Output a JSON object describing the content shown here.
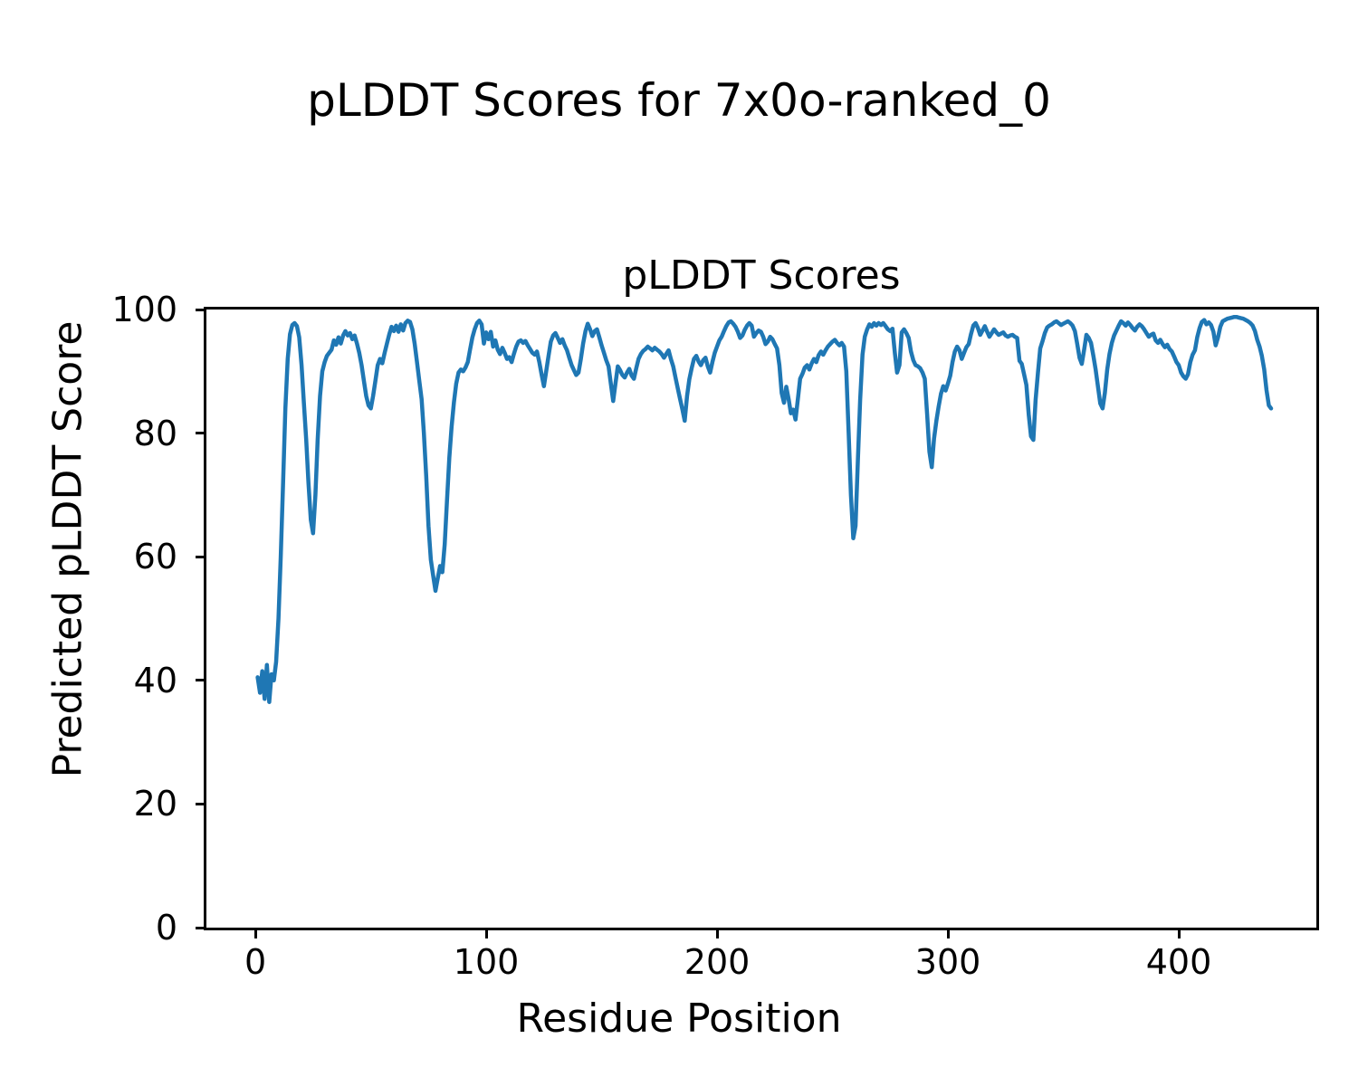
{
  "figure": {
    "suptitle": "pLDDT Scores for 7x0o-ranked_0",
    "axes_title": "pLDDT Scores",
    "xlabel": "Residue Position",
    "ylabel": "Predicted pLDDT Score"
  },
  "chart_data": {
    "type": "line",
    "title": "pLDDT Scores",
    "xlabel": "Residue Position",
    "ylabel": "Predicted pLDDT Score",
    "line_color": "#1f77b4",
    "background_color": "#ffffff",
    "grid": false,
    "legend": false,
    "xlim": [
      -21.2,
      459.6
    ],
    "ylim": [
      0,
      100
    ],
    "x_ticks": [
      0,
      100,
      200,
      300,
      400
    ],
    "y_ticks": [
      0,
      20,
      40,
      60,
      80,
      100
    ],
    "x_start": 1,
    "x_step": 1,
    "values": [
      40.5,
      38,
      41.5,
      37,
      42.5,
      36.5,
      41,
      40,
      43,
      50,
      60,
      72,
      84,
      92,
      96,
      97.5,
      97.8,
      97.3,
      95.5,
      91,
      85,
      79,
      72,
      66,
      63.8,
      70,
      79,
      86,
      90,
      91.5,
      92.5,
      93,
      93.5,
      95,
      94.3,
      95.5,
      94.5,
      95.8,
      96.5,
      95.8,
      96.2,
      95.2,
      95.8,
      94.5,
      93,
      91,
      88.5,
      86,
      84.5,
      84,
      86,
      88.5,
      91,
      92,
      91.3,
      93,
      94.5,
      96,
      97.2,
      96.5,
      97.4,
      96.4,
      97.6,
      96.6,
      97.8,
      98.2,
      98,
      96.8,
      94.5,
      91.5,
      88.5,
      85.5,
      80,
      73,
      65,
      59.5,
      57,
      54.5,
      56.5,
      58.5,
      57.5,
      62,
      69,
      76,
      81,
      85,
      88,
      89.8,
      90.3,
      90,
      90.6,
      91.5,
      93.5,
      95.5,
      96.8,
      97.8,
      98.2,
      97.6,
      94.5,
      96.3,
      95.2,
      96.4,
      94,
      95,
      93.5,
      92.8,
      93.8,
      93,
      92,
      92.3,
      91.5,
      92.8,
      94,
      94.8,
      95,
      94.6,
      94.9,
      94.2,
      93.6,
      93,
      92.7,
      93.2,
      91.5,
      89.5,
      87.6,
      90,
      92.5,
      94.8,
      95.8,
      96.2,
      95.4,
      94.6,
      95.2,
      94.2,
      93.4,
      92.2,
      91,
      90.2,
      89.4,
      89.8,
      92,
      94.5,
      96.5,
      97.7,
      96.8,
      95.7,
      96.5,
      96.8,
      95.5,
      94.2,
      93,
      91.8,
      90.8,
      88,
      85.2,
      88,
      90.8,
      90.2,
      89.4,
      89,
      89.8,
      90.4,
      89.3,
      88.8,
      90.5,
      92,
      92.8,
      93.3,
      93.6,
      94,
      93.7,
      93.4,
      93.8,
      93.5,
      93.2,
      92.8,
      92.2,
      92.8,
      93.4,
      92,
      90.8,
      89,
      87.2,
      85.5,
      83.8,
      82,
      86,
      88.7,
      90.5,
      92,
      92.5,
      91.6,
      91,
      91.8,
      92.2,
      90.8,
      89.8,
      91.5,
      93,
      94,
      95,
      95.6,
      96.5,
      97.3,
      97.9,
      98.1,
      97.7,
      97.2,
      96.4,
      95.4,
      95.8,
      96.7,
      97.4,
      97.8,
      97.4,
      95.6,
      96.2,
      96.6,
      96.4,
      95.6,
      94.4,
      94.8,
      95.6,
      95.2,
      94.4,
      93.7,
      91,
      86.5,
      84.9,
      87.5,
      85.5,
      83.2,
      83.8,
      82.2,
      85.5,
      88.8,
      89.6,
      90.6,
      91,
      90.3,
      91.3,
      92,
      91.5,
      92.6,
      93.2,
      92.7,
      93.4,
      94,
      94.4,
      94.8,
      95.1,
      94.6,
      94.2,
      94.6,
      94,
      90,
      80,
      70,
      63,
      65,
      75.7,
      85.4,
      92.7,
      95.6,
      96.8,
      97.6,
      97.2,
      97.8,
      97.4,
      97.8,
      97.5,
      97.8,
      97.3,
      96.8,
      96.5,
      96.9,
      93,
      89.8,
      91,
      96.3,
      96.8,
      96.2,
      95.4,
      93.2,
      91.8,
      91,
      90.8,
      90.5,
      89.8,
      88.8,
      83,
      77,
      74.5,
      79.1,
      82,
      84.3,
      86.4,
      87.6,
      86.9,
      88,
      89.3,
      91.5,
      93.2,
      94,
      93.4,
      92,
      93,
      93.9,
      94.4,
      96,
      97.4,
      97.8,
      97,
      95.9,
      96.6,
      97.3,
      96.4,
      95.6,
      96.2,
      96.8,
      96.3,
      95.9,
      96.1,
      96.3,
      95.8,
      95.6,
      95.8,
      95.9,
      95.6,
      95.4,
      91.7,
      91.2,
      89.5,
      87.8,
      83,
      79.5,
      78.9,
      85.4,
      89.8,
      93.7,
      94.9,
      96.2,
      97.1,
      97.4,
      97.6,
      97.9,
      98.1,
      97.8,
      97.5,
      97.7,
      97.9,
      98.1,
      97.8,
      97.4,
      96.5,
      94.5,
      92.2,
      91.2,
      93.5,
      95.9,
      95.4,
      94.6,
      92.5,
      90.3,
      87.5,
      84.8,
      84,
      86.5,
      90.3,
      92.8,
      94.6,
      95.8,
      96.6,
      97.4,
      98.1,
      97.8,
      97.4,
      97.9,
      97.5,
      97,
      96.6,
      97.2,
      97.6,
      97.3,
      96.8,
      96.2,
      95.6,
      95.9,
      96.1,
      95,
      94.6,
      95.1,
      94.4,
      93.9,
      94.3,
      93.6,
      93.2,
      92.4,
      91.5,
      91,
      89.8,
      89.2,
      88.8,
      89.5,
      91.5,
      92.7,
      93.4,
      95.5,
      97,
      98,
      98.3,
      97.6,
      97.9,
      97.5,
      96.4,
      94.2,
      95.5,
      97.2,
      98.1,
      98.3,
      98.5,
      98.6,
      98.7,
      98.8,
      98.8,
      98.7,
      98.6,
      98.5,
      98.3,
      98.1,
      97.8,
      97.4,
      96.5,
      95.1,
      94,
      92.5,
      90.3,
      87,
      84.5,
      84
    ]
  }
}
